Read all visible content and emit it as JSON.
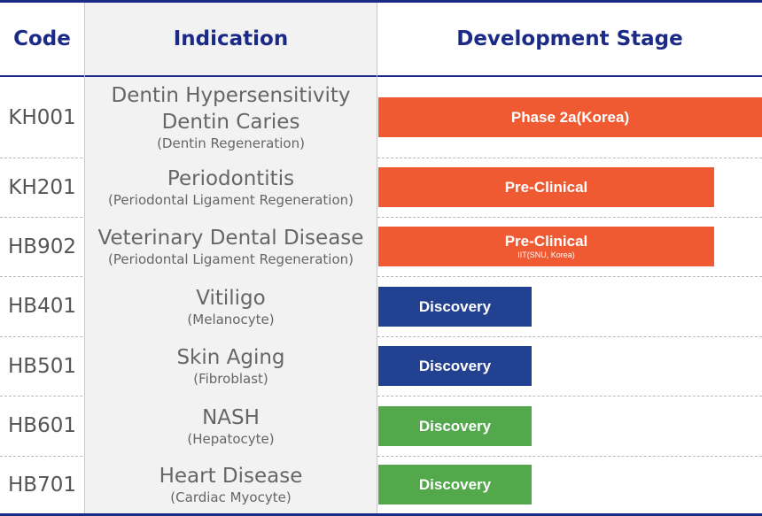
{
  "colors": {
    "header_text": "#1a2a86",
    "orange": "#f05a32",
    "blue": "#234191",
    "green": "#52a84b"
  },
  "header": {
    "code": "Code",
    "indication": "Indication",
    "stage": "Development Stage"
  },
  "rows": [
    {
      "code": "KH001",
      "indication_lines": [
        "Dentin Hypersensitivity",
        "Dentin Caries"
      ],
      "detail": "(Dentin Regeneration)",
      "stage": "Phase 2a(Korea)",
      "stage_note": "",
      "color": "orange",
      "progress": 1.0
    },
    {
      "code": "KH201",
      "indication_lines": [
        "Periodontitis"
      ],
      "detail": "(Periodontal Ligament Regeneration)",
      "stage": "Pre-Clinical",
      "stage_note": "",
      "color": "orange",
      "progress": 0.875
    },
    {
      "code": "HB902",
      "indication_lines": [
        "Veterinary Dental Disease"
      ],
      "detail": "(Periodontal Ligament Regeneration)",
      "stage": "Pre-Clinical",
      "stage_note": "IIT(SNU, Korea)",
      "color": "orange",
      "progress": 0.875
    },
    {
      "code": "HB401",
      "indication_lines": [
        "Vitiligo"
      ],
      "detail": "(Melanocyte)",
      "stage": "Discovery",
      "stage_note": "",
      "color": "blue",
      "progress": 0.4
    },
    {
      "code": "HB501",
      "indication_lines": [
        "Skin Aging"
      ],
      "detail": "(Fibroblast)",
      "stage": "Discovery",
      "stage_note": "",
      "color": "blue",
      "progress": 0.4
    },
    {
      "code": "HB601",
      "indication_lines": [
        "NASH"
      ],
      "detail": "(Hepatocyte)",
      "stage": "Discovery",
      "stage_note": "",
      "color": "green",
      "progress": 0.4
    },
    {
      "code": "HB701",
      "indication_lines": [
        "Heart Disease"
      ],
      "detail": "(Cardiac Myocyte)",
      "stage": "Discovery",
      "stage_note": "",
      "color": "green",
      "progress": 0.4
    }
  ]
}
